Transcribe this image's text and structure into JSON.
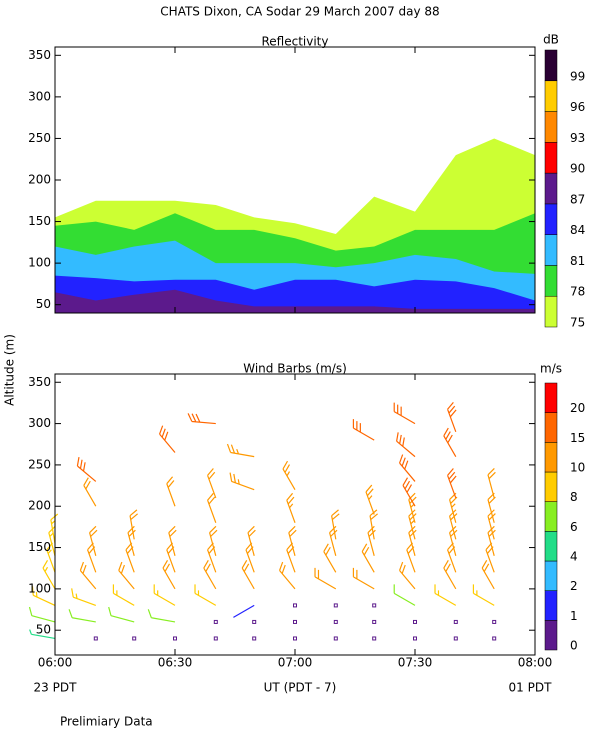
{
  "title": "CHATS Dixon, CA   Sodar   29 March 2007   day   88",
  "ylabel": "Altitude (m)",
  "note": "Prelimiary Data",
  "chart_data": [
    {
      "type": "contour",
      "title": "Reflectivity",
      "x": [
        6.0,
        6.17,
        6.33,
        6.5,
        6.67,
        6.83,
        7.0,
        7.17,
        7.33,
        7.5,
        7.67,
        7.83,
        8.0
      ],
      "series": [
        {
          "color": "#ccff33",
          "values": [
            155,
            175,
            175,
            175,
            170,
            155,
            148,
            135,
            180,
            162,
            230,
            250,
            230
          ]
        },
        {
          "color": "#33dd33",
          "values": [
            145,
            150,
            140,
            160,
            140,
            140,
            130,
            115,
            120,
            140,
            140,
            140,
            160
          ]
        },
        {
          "color": "#33bbff",
          "values": [
            120,
            110,
            120,
            127,
            100,
            100,
            100,
            95,
            100,
            110,
            105,
            90,
            87
          ]
        },
        {
          "color": "#2222ff",
          "values": [
            85,
            82,
            78,
            80,
            80,
            68,
            80,
            80,
            72,
            80,
            78,
            70,
            55
          ]
        },
        {
          "color": "#5c1a8c",
          "values": [
            65,
            55,
            62,
            68,
            55,
            48,
            48,
            48,
            48,
            45,
            45,
            45,
            45
          ]
        }
      ],
      "xlim": [
        6,
        8
      ],
      "xticks": [
        6,
        6.5,
        7,
        7.5,
        8
      ],
      "ylim": [
        40,
        360
      ],
      "yticks": [
        50,
        100,
        150,
        200,
        250,
        300,
        350
      ],
      "colorbar": {
        "label": "dB",
        "levels": [
          75,
          78,
          81,
          84,
          87,
          90,
          93,
          96,
          99
        ],
        "colors": [
          "#ccff33",
          "#33dd33",
          "#33bbff",
          "#2222ff",
          "#5c1a8c",
          "#ff0000",
          "#ff8800",
          "#ffcc00",
          "#2a0033"
        ]
      }
    },
    {
      "type": "barbs",
      "title": "Wind Barbs (m/s)",
      "xlabel": "UT  (PDT - 7)",
      "x_left_note": "23 PDT",
      "x_right_note": "01 PDT",
      "columns": [
        {
          "x": 6.0,
          "y": [
            40,
            60,
            80,
            100,
            120,
            140,
            155
          ],
          "speed": [
            4,
            6,
            8,
            9,
            9,
            9,
            9
          ],
          "direction": [
            280,
            285,
            295,
            330,
            340,
            345,
            350
          ]
        },
        {
          "x": 6.17,
          "y": [
            40,
            60,
            80,
            100,
            120,
            140,
            200,
            230
          ],
          "speed": [
            0,
            7,
            9,
            10,
            10,
            10,
            12,
            16
          ],
          "direction": [
            0,
            280,
            290,
            320,
            340,
            345,
            330,
            310
          ]
        },
        {
          "x": 6.33,
          "y": [
            40,
            60,
            80,
            100,
            120,
            140,
            160
          ],
          "speed": [
            0,
            7,
            9,
            10,
            11,
            11,
            11
          ],
          "direction": [
            0,
            285,
            300,
            320,
            340,
            345,
            350
          ]
        },
        {
          "x": 6.5,
          "y": [
            40,
            60,
            80,
            100,
            120,
            140,
            200,
            265
          ],
          "speed": [
            0,
            6,
            9,
            10,
            11,
            11,
            12,
            16
          ],
          "direction": [
            0,
            280,
            300,
            330,
            340,
            345,
            340,
            320
          ]
        },
        {
          "x": 6.67,
          "y": [
            40,
            60,
            80,
            100,
            120,
            140,
            180,
            210,
            300
          ],
          "speed": [
            0,
            0,
            9,
            10,
            11,
            12,
            12,
            12,
            17
          ],
          "direction": [
            0,
            0,
            300,
            330,
            340,
            345,
            340,
            340,
            275
          ]
        },
        {
          "x": 6.83,
          "y": [
            40,
            60,
            80,
            100,
            120,
            140,
            220,
            260
          ],
          "speed": [
            0,
            0,
            1,
            10,
            11,
            12,
            13,
            14
          ],
          "direction": [
            0,
            0,
            240,
            330,
            340,
            345,
            290,
            280
          ]
        },
        {
          "x": 7.0,
          "y": [
            40,
            60,
            80,
            100,
            120,
            140,
            180,
            220
          ],
          "speed": [
            0,
            0,
            0,
            10,
            11,
            12,
            13,
            13
          ],
          "direction": [
            0,
            0,
            0,
            320,
            340,
            345,
            340,
            330
          ]
        },
        {
          "x": 7.17,
          "y": [
            40,
            60,
            80,
            100,
            120,
            140,
            160
          ],
          "speed": [
            0,
            0,
            0,
            10,
            11,
            12,
            12
          ],
          "direction": [
            0,
            0,
            0,
            300,
            330,
            345,
            350
          ]
        },
        {
          "x": 7.33,
          "y": [
            40,
            60,
            80,
            100,
            120,
            140,
            160,
            190,
            280
          ],
          "speed": [
            0,
            0,
            0,
            10,
            11,
            12,
            12,
            13,
            17
          ],
          "direction": [
            0,
            0,
            0,
            300,
            330,
            345,
            350,
            340,
            300
          ]
        },
        {
          "x": 7.5,
          "y": [
            40,
            60,
            80,
            100,
            120,
            140,
            160,
            180,
            200,
            230,
            260,
            300
          ],
          "speed": [
            0,
            0,
            7,
            10,
            11,
            12,
            13,
            13,
            15,
            15,
            16,
            17
          ],
          "direction": [
            0,
            0,
            300,
            320,
            340,
            345,
            345,
            345,
            330,
            320,
            310,
            300
          ]
        },
        {
          "x": 7.67,
          "y": [
            40,
            60,
            80,
            100,
            120,
            140,
            160,
            180,
            210,
            260,
            290
          ],
          "speed": [
            0,
            0,
            9,
            10,
            11,
            12,
            12,
            13,
            15,
            16,
            16
          ],
          "direction": [
            0,
            0,
            300,
            330,
            340,
            345,
            345,
            345,
            340,
            330,
            340
          ]
        },
        {
          "x": 7.83,
          "y": [
            40,
            60,
            80,
            100,
            120,
            140,
            160,
            180,
            210
          ],
          "speed": [
            0,
            0,
            9,
            10,
            10,
            11,
            12,
            12,
            12
          ],
          "direction": [
            0,
            0,
            300,
            330,
            340,
            345,
            345,
            345,
            345
          ]
        }
      ],
      "xlim": [
        6,
        8
      ],
      "xticks": [
        {
          "value": 6,
          "label": "06:00"
        },
        {
          "value": 6.5,
          "label": "06:30"
        },
        {
          "value": 7,
          "label": "07:00"
        },
        {
          "value": 7.5,
          "label": "07:30"
        },
        {
          "value": 8,
          "label": "08:00"
        }
      ],
      "ylim": [
        20,
        360
      ],
      "yticks": [
        50,
        100,
        150,
        200,
        250,
        300,
        350
      ],
      "colorbar": {
        "label": "m/s",
        "levels": [
          0,
          1,
          2,
          4,
          6,
          8,
          10,
          15,
          20
        ],
        "colors": [
          "#5c1a8c",
          "#2222ff",
          "#33bbff",
          "#22dd88",
          "#88ee22",
          "#ffcc00",
          "#ff9900",
          "#ff6600",
          "#ff0000"
        ]
      }
    }
  ]
}
